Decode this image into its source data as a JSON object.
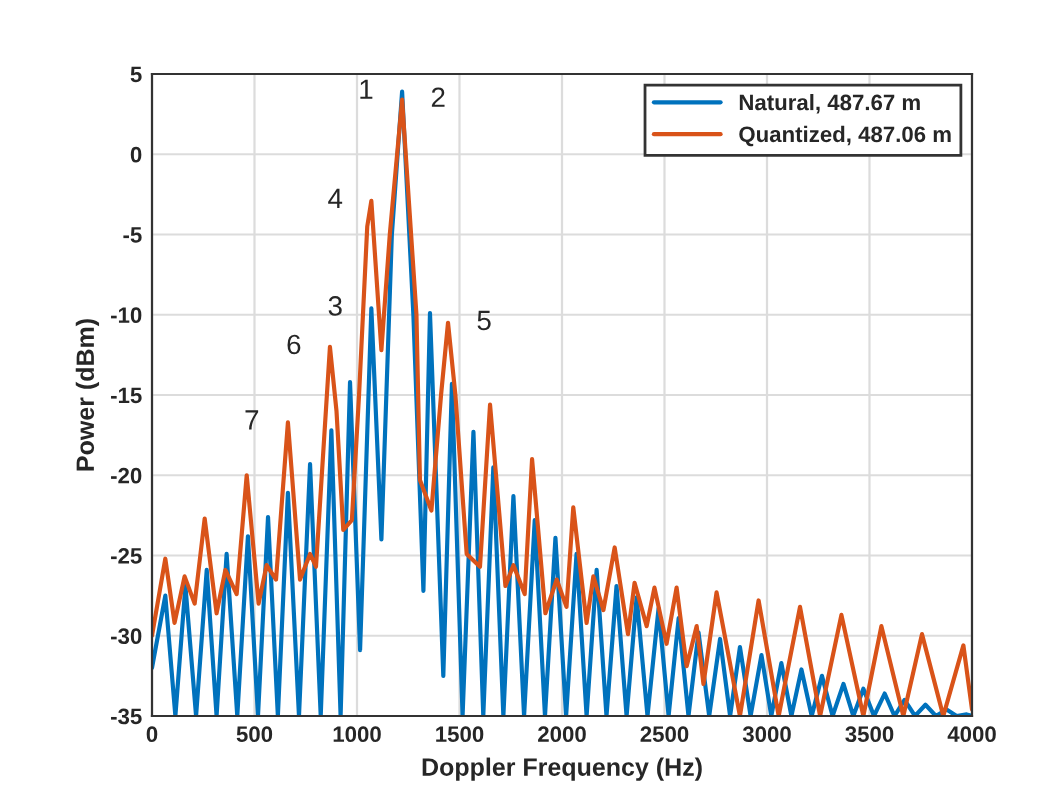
{
  "chart_data": {
    "type": "line",
    "xlabel": "Doppler Frequency (Hz)",
    "ylabel": "Power (dBm)",
    "xlim": [
      0,
      4000
    ],
    "xticks": [
      0,
      500,
      1000,
      1500,
      2000,
      2500,
      3000,
      3500,
      4000
    ],
    "ylim": [
      -35,
      5
    ],
    "yticks": [
      -35,
      -30,
      -25,
      -20,
      -15,
      -10,
      -5,
      0,
      5
    ],
    "grid": true,
    "legend": "top right",
    "line_style": "solid",
    "marker": "none",
    "series": [
      {
        "name": "Natural, 487.67 m",
        "color": "#0072bd",
        "x": [
          0,
          65,
          114,
          163,
          215,
          267,
          315,
          364,
          416,
          468,
          517,
          566,
          614,
          663,
          717,
          771,
          823,
          875,
          920,
          966,
          1015,
          1070,
          1119,
          1170,
          1220,
          1275,
          1324,
          1356,
          1421,
          1463,
          1515,
          1568,
          1616,
          1665,
          1714,
          1763,
          1815,
          1867,
          1917,
          1968,
          2020,
          2071,
          2120,
          2169,
          2217,
          2266,
          2315,
          2364,
          2417,
          2471,
          2520,
          2569,
          2617,
          2666,
          2718,
          2771,
          2820,
          2868,
          2920,
          2973,
          3021,
          3070,
          3119,
          3168,
          3218,
          3268,
          3320,
          3373,
          3421,
          3470,
          3522,
          3574,
          3622,
          3671,
          3722,
          3773,
          3824,
          3876,
          3925,
          3974,
          4000
        ],
        "values": [
          -32,
          -27.5,
          -35,
          -26.9,
          -35,
          -25.9,
          -35,
          -24.9,
          -35,
          -23.8,
          -35,
          -22.6,
          -35,
          -21.1,
          -35,
          -19.3,
          -35,
          -17.2,
          -35,
          -14.2,
          -30.9,
          -9.6,
          -24,
          -5,
          3.9,
          -10,
          -27.2,
          -9.9,
          -32.5,
          -14.3,
          -35,
          -17.3,
          -35,
          -19.5,
          -35,
          -21.3,
          -35,
          -22.8,
          -35,
          -23.9,
          -35,
          -24.9,
          -35,
          -25.9,
          -35,
          -26.9,
          -35,
          -27.6,
          -35,
          -28.3,
          -35,
          -28.9,
          -35,
          -29.8,
          -35,
          -30.2,
          -35,
          -30.7,
          -35,
          -31.2,
          -35,
          -31.7,
          -35,
          -32.1,
          -35,
          -32.5,
          -35,
          -33,
          -35,
          -33.3,
          -35,
          -33.6,
          -35,
          -34,
          -35,
          -34.3,
          -35,
          -34.6,
          -35,
          -34.9,
          -35
        ]
      },
      {
        "name": "Quantized, 487.06 m",
        "color": "#d95319",
        "x": [
          0,
          65,
          110,
          159,
          208,
          257,
          315,
          358,
          413,
          462,
          520,
          559,
          605,
          663,
          722,
          771,
          800,
          868,
          900,
          933,
          975,
          1010,
          1050,
          1070,
          1119,
          1160,
          1220,
          1290,
          1307,
          1363,
          1410,
          1444,
          1480,
          1535,
          1600,
          1649,
          1724,
          1763,
          1818,
          1854,
          1919,
          1974,
          2022,
          2055,
          2120,
          2153,
          2202,
          2257,
          2322,
          2354,
          2413,
          2451,
          2510,
          2559,
          2608,
          2657,
          2690,
          2754,
          2868,
          2959,
          3057,
          3161,
          3259,
          3363,
          3470,
          3558,
          3665,
          3756,
          3860,
          3958,
          4000
        ],
        "values": [
          -30,
          -25.2,
          -29.2,
          -26.3,
          -28,
          -22.7,
          -28.6,
          -25.9,
          -27.4,
          -20,
          -28,
          -25.6,
          -26.5,
          -16.7,
          -26.5,
          -24.9,
          -25.7,
          -12,
          -16,
          -23.4,
          -22.8,
          -15,
          -4.5,
          -2.9,
          -12.2,
          -5,
          3.4,
          -10,
          -20.3,
          -22.2,
          -15,
          -10.5,
          -15,
          -24.9,
          -25.7,
          -15.6,
          -26.9,
          -25.6,
          -27.4,
          -19,
          -28.6,
          -26.5,
          -28.2,
          -22,
          -29.2,
          -26.3,
          -28.4,
          -24.5,
          -29.9,
          -26.7,
          -29.4,
          -27,
          -30.5,
          -27,
          -31.9,
          -29.4,
          -33,
          -27.3,
          -35,
          -27.8,
          -35,
          -28.2,
          -35,
          -28.7,
          -35,
          -29.4,
          -35,
          -29.9,
          -35,
          -30.6,
          -34.6
        ]
      }
    ],
    "annotations": [
      {
        "text": "1",
        "x": 1220,
        "y": 3.9
      },
      {
        "text": "2",
        "x": 1220,
        "y": 3.4
      },
      {
        "text": "4",
        "x": 1070,
        "y": -2.9
      },
      {
        "text": "3",
        "x": 1070,
        "y": -9.6
      },
      {
        "text": "5",
        "x": 1444,
        "y": -10.5
      },
      {
        "text": "6",
        "x": 868,
        "y": -12
      },
      {
        "text": "7",
        "x": 663,
        "y": -16.7
      }
    ]
  }
}
